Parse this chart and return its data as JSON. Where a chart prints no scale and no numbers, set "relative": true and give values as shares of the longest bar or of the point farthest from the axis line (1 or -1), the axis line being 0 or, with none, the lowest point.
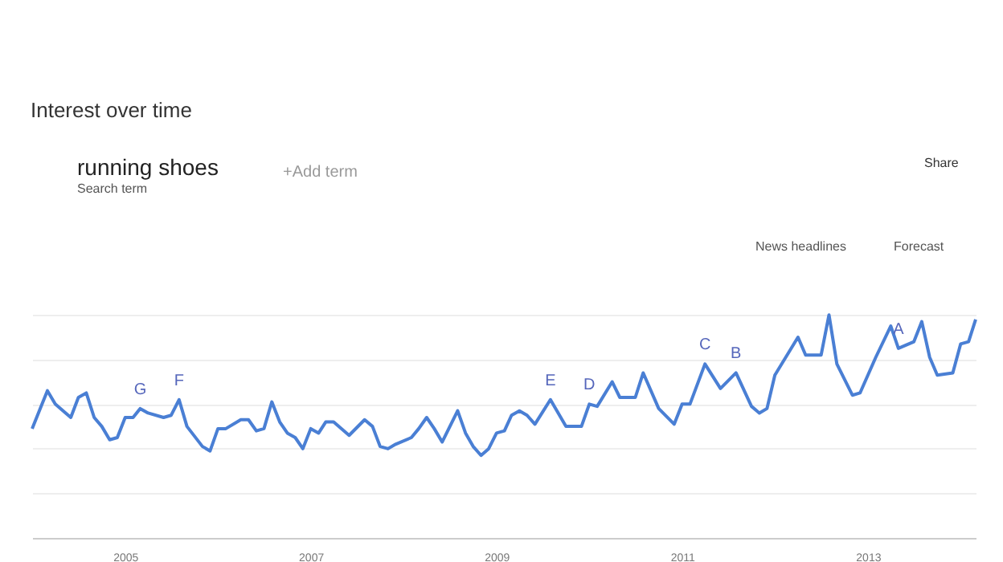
{
  "chart_data": {
    "type": "line",
    "title": "Interest over time",
    "relative": true,
    "grid": "y",
    "annotations": [
      "running shoes",
      "Search term",
      "+Add term",
      "Share",
      "News headlines",
      "Forecast",
      {
        "text": "G",
        "x": "2005-03",
        "y": 0.58
      },
      {
        "text": "F",
        "x": "2005-08",
        "y": 0.62
      },
      {
        "text": "E",
        "x": "2009-08",
        "y": 0.62
      },
      {
        "text": "D",
        "x": "2010-01",
        "y": 0.6
      },
      {
        "text": "C",
        "x": "2011-04",
        "y": 0.78
      },
      {
        "text": "B",
        "x": "2011-08",
        "y": 0.74
      },
      {
        "text": "A",
        "x": "2013-05",
        "y": 0.85
      }
    ],
    "x": [
      "2004-01",
      "2004-03",
      "2004-04",
      "2004-06",
      "2004-07",
      "2004-08",
      "2004-09",
      "2004-10",
      "2004-11",
      "2004-12",
      "2005-01",
      "2005-02",
      "2005-03",
      "2005-04",
      "2005-06",
      "2005-07",
      "2005-08",
      "2005-09",
      "2005-11",
      "2005-12",
      "2006-01",
      "2006-02",
      "2006-04",
      "2006-05",
      "2006-06",
      "2006-07",
      "2006-08",
      "2006-09",
      "2006-10",
      "2006-11",
      "2006-12",
      "2007-01",
      "2007-02",
      "2007-03",
      "2007-04",
      "2007-06",
      "2007-08",
      "2007-09",
      "2007-10",
      "2007-11",
      "2007-12",
      "2008-02",
      "2008-03",
      "2008-04",
      "2008-05",
      "2008-06",
      "2008-08",
      "2008-09",
      "2008-10",
      "2008-11",
      "2008-12",
      "2009-01",
      "2009-02",
      "2009-03",
      "2009-04",
      "2009-05",
      "2009-06",
      "2009-08",
      "2009-10",
      "2009-12",
      "2010-01",
      "2010-02",
      "2010-04",
      "2010-05",
      "2010-07",
      "2010-08",
      "2010-10",
      "2010-12",
      "2011-01",
      "2011-02",
      "2011-04",
      "2011-06",
      "2011-08",
      "2011-10",
      "2011-11",
      "2011-12",
      "2012-01",
      "2012-04",
      "2012-05",
      "2012-07",
      "2012-08",
      "2012-09",
      "2012-11",
      "2012-12",
      "2013-02",
      "2013-04",
      "2013-05",
      "2013-07",
      "2013-08",
      "2013-09",
      "2013-10",
      "2013-12",
      "2014-01",
      "2014-02",
      "2014-03"
    ],
    "series": [
      {
        "color": "#4a7fd4",
        "values": [
          0.49,
          0.66,
          0.6,
          0.54,
          0.63,
          0.65,
          0.54,
          0.5,
          0.44,
          0.45,
          0.54,
          0.54,
          0.58,
          0.56,
          0.54,
          0.55,
          0.62,
          0.5,
          0.41,
          0.39,
          0.49,
          0.49,
          0.53,
          0.53,
          0.48,
          0.49,
          0.61,
          0.52,
          0.47,
          0.45,
          0.4,
          0.49,
          0.47,
          0.52,
          0.52,
          0.46,
          0.53,
          0.5,
          0.41,
          0.4,
          0.42,
          0.45,
          0.49,
          0.54,
          0.49,
          0.43,
          0.57,
          0.47,
          0.41,
          0.37,
          0.4,
          0.47,
          0.48,
          0.55,
          0.57,
          0.55,
          0.51,
          0.62,
          0.5,
          0.5,
          0.6,
          0.59,
          0.7,
          0.63,
          0.63,
          0.74,
          0.58,
          0.51,
          0.6,
          0.6,
          0.78,
          0.67,
          0.74,
          0.59,
          0.56,
          0.58,
          0.73,
          0.9,
          0.82,
          0.82,
          1.0,
          0.78,
          0.64,
          0.65,
          0.81,
          0.95,
          0.85,
          0.88,
          0.97,
          0.81,
          0.73,
          0.74,
          0.87,
          0.88,
          0.98
        ]
      }
    ],
    "xlim": [
      "2004-01",
      "2014-03"
    ],
    "xticks": [
      "2005",
      "2007",
      "2009",
      "2011",
      "2013"
    ]
  }
}
